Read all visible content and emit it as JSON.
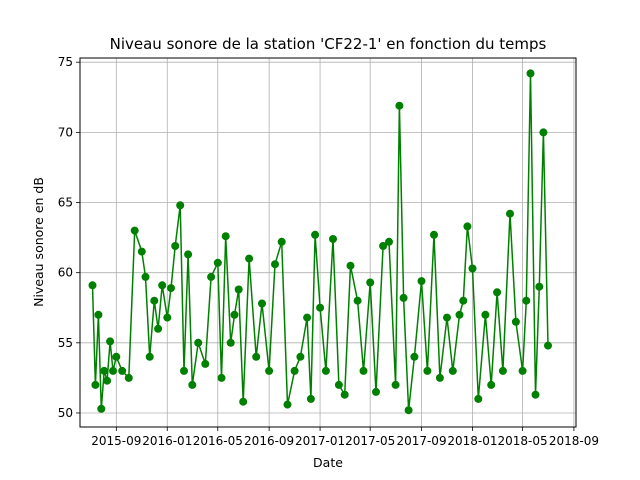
{
  "chart_data": {
    "type": "line",
    "title": "Niveau sonore de la station 'CF22-1' en fonction du temps",
    "xlabel": "Date",
    "ylabel": "Niveau sonore en dB",
    "x_ticks": [
      "2015-09",
      "2016-01",
      "2016-05",
      "2016-09",
      "2017-01",
      "2017-05",
      "2017-09",
      "2018-01",
      "2018-05",
      "2018-09"
    ],
    "y_ticks": [
      50,
      55,
      60,
      65,
      70,
      75
    ],
    "xlim": [
      "2015-06-06",
      "2018-09-06"
    ],
    "ylim": [
      49.0,
      75.3
    ],
    "grid": true,
    "marker": "circle",
    "color": "#008000",
    "series": [
      {
        "x": [
          "2015-07-06",
          "2015-07-13",
          "2015-07-20",
          "2015-07-27",
          "2015-08-03",
          "2015-08-10",
          "2015-08-17",
          "2015-08-24",
          "2015-09-01",
          "2015-09-15",
          "2015-10-01",
          "2015-10-15",
          "2015-11-01",
          "2015-11-10",
          "2015-11-20",
          "2015-12-01",
          "2015-12-10",
          "2015-12-20",
          "2016-01-01",
          "2016-01-10",
          "2016-01-20",
          "2016-02-01",
          "2016-02-10",
          "2016-02-20",
          "2016-03-01",
          "2016-03-15",
          "2016-04-01",
          "2016-04-15",
          "2016-05-01",
          "2016-05-10",
          "2016-05-20",
          "2016-06-01",
          "2016-06-10",
          "2016-06-20",
          "2016-07-01",
          "2016-07-15",
          "2016-08-01",
          "2016-08-15",
          "2016-09-01",
          "2016-09-15",
          "2016-10-01",
          "2016-10-15",
          "2016-11-01",
          "2016-11-15",
          "2016-12-01",
          "2016-12-10",
          "2016-12-20",
          "2017-01-01",
          "2017-01-15",
          "2017-02-01",
          "2017-02-15",
          "2017-03-01",
          "2017-03-15",
          "2017-04-01",
          "2017-04-15",
          "2017-05-01",
          "2017-05-15",
          "2017-06-01",
          "2017-06-15",
          "2017-07-01",
          "2017-07-10",
          "2017-07-20",
          "2017-08-01",
          "2017-08-15",
          "2017-09-01",
          "2017-09-15",
          "2017-10-01",
          "2017-10-15",
          "2017-11-01",
          "2017-11-15",
          "2017-12-01",
          "2017-12-10",
          "2017-12-20",
          "2018-01-01",
          "2018-01-15",
          "2018-02-01",
          "2018-02-15",
          "2018-03-01",
          "2018-03-15",
          "2018-04-01",
          "2018-04-15",
          "2018-05-01",
          "2018-05-10",
          "2018-05-20",
          "2018-06-01",
          "2018-06-10",
          "2018-06-20",
          "2018-07-01"
        ],
        "values": [
          59.1,
          52.0,
          57.0,
          50.3,
          53.0,
          52.3,
          55.1,
          53.0,
          54.0,
          53.0,
          52.5,
          63.0,
          61.5,
          59.7,
          54.0,
          58.0,
          56.0,
          59.1,
          56.8,
          58.9,
          61.9,
          64.8,
          53.0,
          61.3,
          52.0,
          55.0,
          53.5,
          59.7,
          60.7,
          52.5,
          62.6,
          55.0,
          57.0,
          58.8,
          50.8,
          61.0,
          54.0,
          57.8,
          53.0,
          60.6,
          62.2,
          50.6,
          53.0,
          54.0,
          56.8,
          51.0,
          62.7,
          57.5,
          53.0,
          62.4,
          52.0,
          51.3,
          60.5,
          58.0,
          53.0,
          59.3,
          51.5,
          61.9,
          62.2,
          52.0,
          71.9,
          58.2,
          50.2,
          54.0,
          59.4,
          53.0,
          62.7,
          52.5,
          56.8,
          53.0,
          57.0,
          58.0,
          63.3,
          60.3,
          51.0,
          57.0,
          52.0,
          58.6,
          53.0,
          64.2,
          56.5,
          53.0,
          58.0,
          74.2,
          51.3,
          59.0,
          70.0,
          54.8
        ]
      }
    ]
  }
}
